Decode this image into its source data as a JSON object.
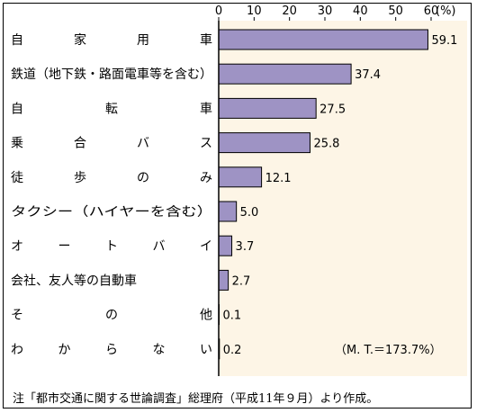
{
  "chart_data": {
    "type": "bar",
    "orientation": "horizontal",
    "unit_label": "(%)",
    "xlim": [
      0,
      60
    ],
    "x_ticks": [
      "0",
      "10",
      "20",
      "30",
      "40",
      "50",
      "60"
    ],
    "categories": [
      "自家用車",
      "鉄道（地下鉄・路面電車等を含む）",
      "自転車",
      "乗合バス",
      "徒歩のみ",
      "タクシー（ハイヤーを含む）",
      "オートバイ",
      "会社、友人等の自動車",
      "その他",
      "わからない"
    ],
    "values": [
      59.1,
      37.4,
      27.5,
      25.8,
      12.1,
      5.0,
      3.7,
      2.7,
      0.1,
      0.2
    ],
    "value_labels": [
      "59.1",
      "37.4",
      "27.5",
      "25.8",
      "12.1",
      "5.0",
      "3.7",
      "2.7",
      "0.1",
      "0.2"
    ],
    "annotation": "（M. T.＝173.7%）",
    "colors": {
      "bar": "#9e93c4",
      "plot_bg": "#fdf5e6",
      "axis": "#000000"
    }
  },
  "note": "注「都市交通に関する世論調査」総理府（平成11年９月）より作成。"
}
